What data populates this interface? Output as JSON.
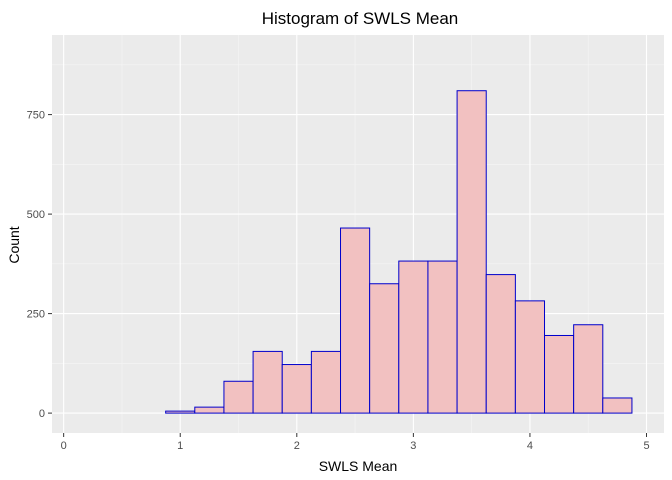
{
  "chart_data": {
    "type": "bar",
    "subtype": "histogram",
    "title": "Histogram of SWLS Mean",
    "xlabel": "SWLS Mean",
    "ylabel": "Count",
    "xlim": [
      -0.1,
      5.15
    ],
    "ylim": [
      -50,
      950
    ],
    "x_ticks": [
      0,
      1,
      2,
      3,
      4,
      5
    ],
    "x_minor_ticks": [
      0.5,
      1.5,
      2.5,
      3.5,
      4.5
    ],
    "y_ticks": [
      0,
      250,
      500,
      750
    ],
    "y_minor_ticks": [
      125,
      375,
      625,
      875
    ],
    "bin_width": 0.25,
    "bins": [
      {
        "x0": 0.125,
        "x1": 0.375,
        "count": 0
      },
      {
        "x0": 0.375,
        "x1": 0.625,
        "count": 0
      },
      {
        "x0": 0.625,
        "x1": 0.875,
        "count": 0
      },
      {
        "x0": 0.875,
        "x1": 1.125,
        "count": 5
      },
      {
        "x0": 1.125,
        "x1": 1.375,
        "count": 15
      },
      {
        "x0": 1.375,
        "x1": 1.625,
        "count": 80
      },
      {
        "x0": 1.625,
        "x1": 1.875,
        "count": 155
      },
      {
        "x0": 1.875,
        "x1": 2.125,
        "count": 122
      },
      {
        "x0": 2.125,
        "x1": 2.375,
        "count": 155
      },
      {
        "x0": 2.375,
        "x1": 2.625,
        "count": 465
      },
      {
        "x0": 2.625,
        "x1": 2.875,
        "count": 325
      },
      {
        "x0": 2.875,
        "x1": 3.125,
        "count": 382
      },
      {
        "x0": 3.125,
        "x1": 3.375,
        "count": 382
      },
      {
        "x0": 3.375,
        "x1": 3.625,
        "count": 810
      },
      {
        "x0": 3.625,
        "x1": 3.875,
        "count": 348
      },
      {
        "x0": 3.875,
        "x1": 4.125,
        "count": 282
      },
      {
        "x0": 4.125,
        "x1": 4.375,
        "count": 195
      },
      {
        "x0": 4.375,
        "x1": 4.625,
        "count": 222
      },
      {
        "x0": 4.625,
        "x1": 4.875,
        "count": 38
      }
    ],
    "colors": {
      "bar_fill": "#f2c1c1",
      "bar_stroke": "#0000cc",
      "panel": "#ebebeb",
      "grid_major": "#ffffff",
      "grid_minor": "#f5f5f5"
    },
    "grid": true,
    "legend": "none"
  }
}
